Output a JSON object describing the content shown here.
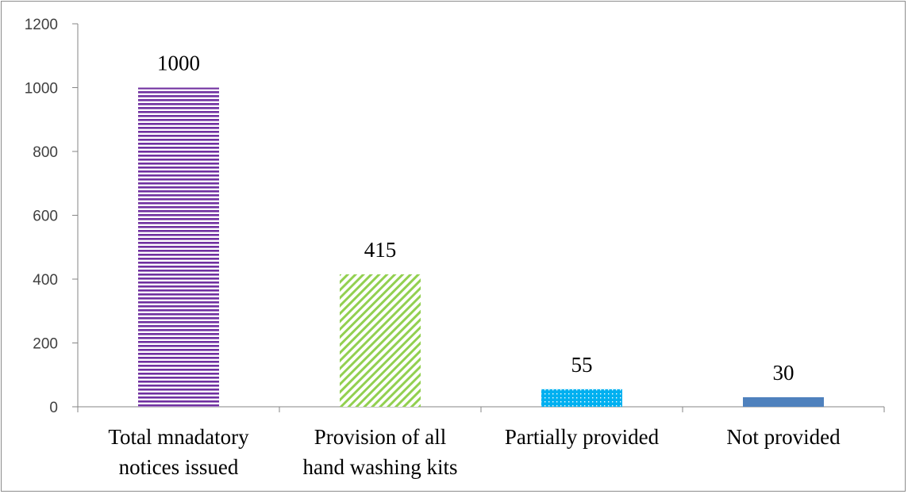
{
  "chart_data": {
    "type": "bar",
    "categories": [
      [
        "Total mnadatory",
        "notices issued"
      ],
      [
        "Provision of all",
        "hand washing kits"
      ],
      [
        "Partially provided"
      ],
      [
        "Not provided"
      ]
    ],
    "values": [
      1000,
      415,
      55,
      30
    ],
    "data_labels": [
      "1000",
      "415",
      "55",
      "30"
    ],
    "ylim": [
      0,
      1200
    ],
    "yticks": [
      0,
      200,
      400,
      600,
      800,
      1000,
      1200
    ],
    "ytick_labels": [
      "0",
      "200",
      "400",
      "600",
      "800",
      "1000",
      "1200"
    ],
    "title": "",
    "xlabel": "",
    "ylabel": "",
    "grid": false,
    "bar_styles": [
      {
        "pattern": "horizontal-stripes",
        "color": "#7030a0"
      },
      {
        "pattern": "diagonal-stripes",
        "color": "#92d050"
      },
      {
        "pattern": "dots",
        "color": "#00b0f0"
      },
      {
        "pattern": "solid",
        "color": "#4f81bd"
      }
    ]
  }
}
